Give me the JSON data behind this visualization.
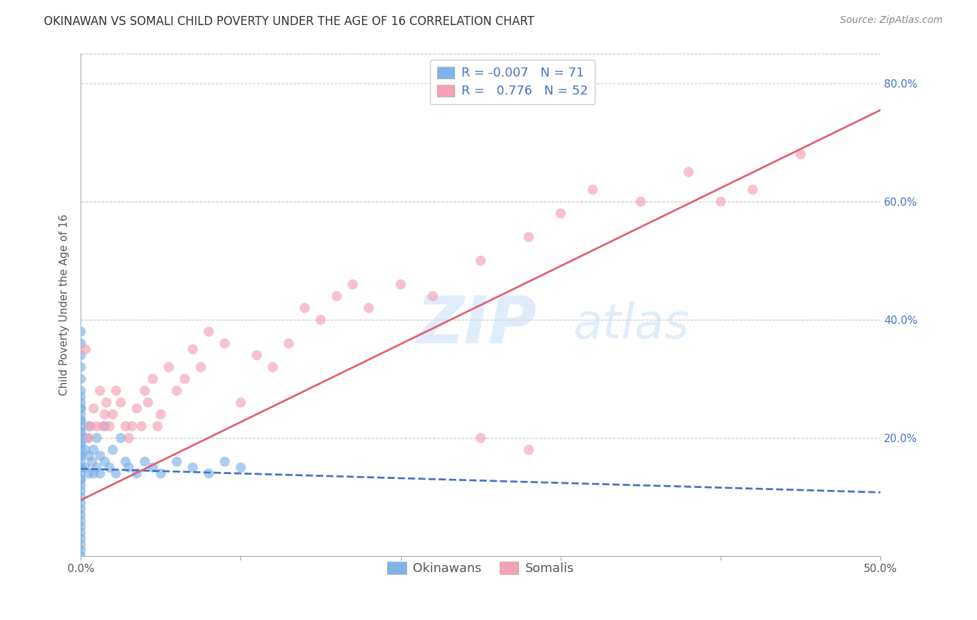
{
  "title": "OKINAWAN VS SOMALI CHILD POVERTY UNDER THE AGE OF 16 CORRELATION CHART",
  "source": "Source: ZipAtlas.com",
  "ylabel_label": "Child Poverty Under the Age of 16",
  "xlim": [
    0.0,
    0.5
  ],
  "ylim": [
    0.0,
    0.85
  ],
  "xticks": [
    0.0,
    0.1,
    0.2,
    0.3,
    0.4,
    0.5
  ],
  "xticklabels": [
    "0.0%",
    "",
    "",
    "",
    "",
    "50.0%"
  ],
  "yticks": [
    0.0,
    0.2,
    0.4,
    0.6,
    0.8
  ],
  "yticklabels": [
    "",
    "20.0%",
    "40.0%",
    "60.0%",
    "80.0%"
  ],
  "grid_color": "#c8c8c8",
  "background_color": "#ffffff",
  "watermark_zip": "ZIP",
  "watermark_atlas": "atlas",
  "legend_R_okinawan": "-0.007",
  "legend_N_okinawan": "71",
  "legend_R_somali": "0.776",
  "legend_N_somali": "52",
  "okinawan_color": "#7EB3E8",
  "somali_color": "#F4A0B5",
  "okinawan_line_color": "#4472C4",
  "somali_line_color": "#E06070",
  "ok_line_x0": 0.0,
  "ok_line_x1": 0.5,
  "ok_line_y0": 0.148,
  "ok_line_y1": 0.108,
  "som_line_x0": 0.0,
  "som_line_x1": 0.5,
  "som_line_y0": 0.095,
  "som_line_y1": 0.755,
  "okinawan_scatter_x": [
    0.0,
    0.0,
    0.0,
    0.0,
    0.0,
    0.0,
    0.0,
    0.0,
    0.0,
    0.0,
    0.0,
    0.0,
    0.0,
    0.0,
    0.0,
    0.0,
    0.0,
    0.0,
    0.0,
    0.0,
    0.0,
    0.0,
    0.0,
    0.0,
    0.0,
    0.0,
    0.0,
    0.0,
    0.0,
    0.0,
    0.0,
    0.0,
    0.0,
    0.0,
    0.0,
    0.0,
    0.0,
    0.0,
    0.0,
    0.0,
    0.0,
    0.003,
    0.003,
    0.004,
    0.005,
    0.005,
    0.005,
    0.007,
    0.008,
    0.008,
    0.01,
    0.01,
    0.012,
    0.012,
    0.015,
    0.015,
    0.018,
    0.02,
    0.022,
    0.025,
    0.028,
    0.03,
    0.035,
    0.04,
    0.045,
    0.05,
    0.06,
    0.07,
    0.08,
    0.09,
    0.1
  ],
  "okinawan_scatter_y": [
    0.0,
    0.01,
    0.02,
    0.03,
    0.04,
    0.05,
    0.06,
    0.07,
    0.08,
    0.09,
    0.1,
    0.11,
    0.12,
    0.13,
    0.14,
    0.15,
    0.16,
    0.17,
    0.18,
    0.19,
    0.2,
    0.21,
    0.22,
    0.23,
    0.24,
    0.25,
    0.26,
    0.27,
    0.28,
    0.3,
    0.32,
    0.34,
    0.36,
    0.38,
    0.13,
    0.15,
    0.17,
    0.19,
    0.21,
    0.23,
    0.25,
    0.15,
    0.18,
    0.2,
    0.14,
    0.17,
    0.22,
    0.16,
    0.14,
    0.18,
    0.15,
    0.2,
    0.14,
    0.17,
    0.16,
    0.22,
    0.15,
    0.18,
    0.14,
    0.2,
    0.16,
    0.15,
    0.14,
    0.16,
    0.15,
    0.14,
    0.16,
    0.15,
    0.14,
    0.16,
    0.15
  ],
  "somali_scatter_x": [
    0.003,
    0.005,
    0.006,
    0.008,
    0.01,
    0.012,
    0.014,
    0.015,
    0.016,
    0.018,
    0.02,
    0.022,
    0.025,
    0.028,
    0.03,
    0.032,
    0.035,
    0.038,
    0.04,
    0.042,
    0.045,
    0.048,
    0.05,
    0.055,
    0.06,
    0.065,
    0.07,
    0.075,
    0.08,
    0.09,
    0.1,
    0.11,
    0.12,
    0.13,
    0.14,
    0.15,
    0.16,
    0.17,
    0.18,
    0.2,
    0.22,
    0.25,
    0.28,
    0.3,
    0.32,
    0.35,
    0.38,
    0.4,
    0.42,
    0.45,
    0.25,
    0.28
  ],
  "somali_scatter_y": [
    0.35,
    0.2,
    0.22,
    0.25,
    0.22,
    0.28,
    0.22,
    0.24,
    0.26,
    0.22,
    0.24,
    0.28,
    0.26,
    0.22,
    0.2,
    0.22,
    0.25,
    0.22,
    0.28,
    0.26,
    0.3,
    0.22,
    0.24,
    0.32,
    0.28,
    0.3,
    0.35,
    0.32,
    0.38,
    0.36,
    0.26,
    0.34,
    0.32,
    0.36,
    0.42,
    0.4,
    0.44,
    0.46,
    0.42,
    0.46,
    0.44,
    0.5,
    0.54,
    0.58,
    0.62,
    0.6,
    0.65,
    0.6,
    0.62,
    0.68,
    0.2,
    0.18
  ],
  "title_fontsize": 12,
  "axis_label_fontsize": 11,
  "tick_fontsize": 11,
  "legend_fontsize": 12,
  "source_fontsize": 10
}
